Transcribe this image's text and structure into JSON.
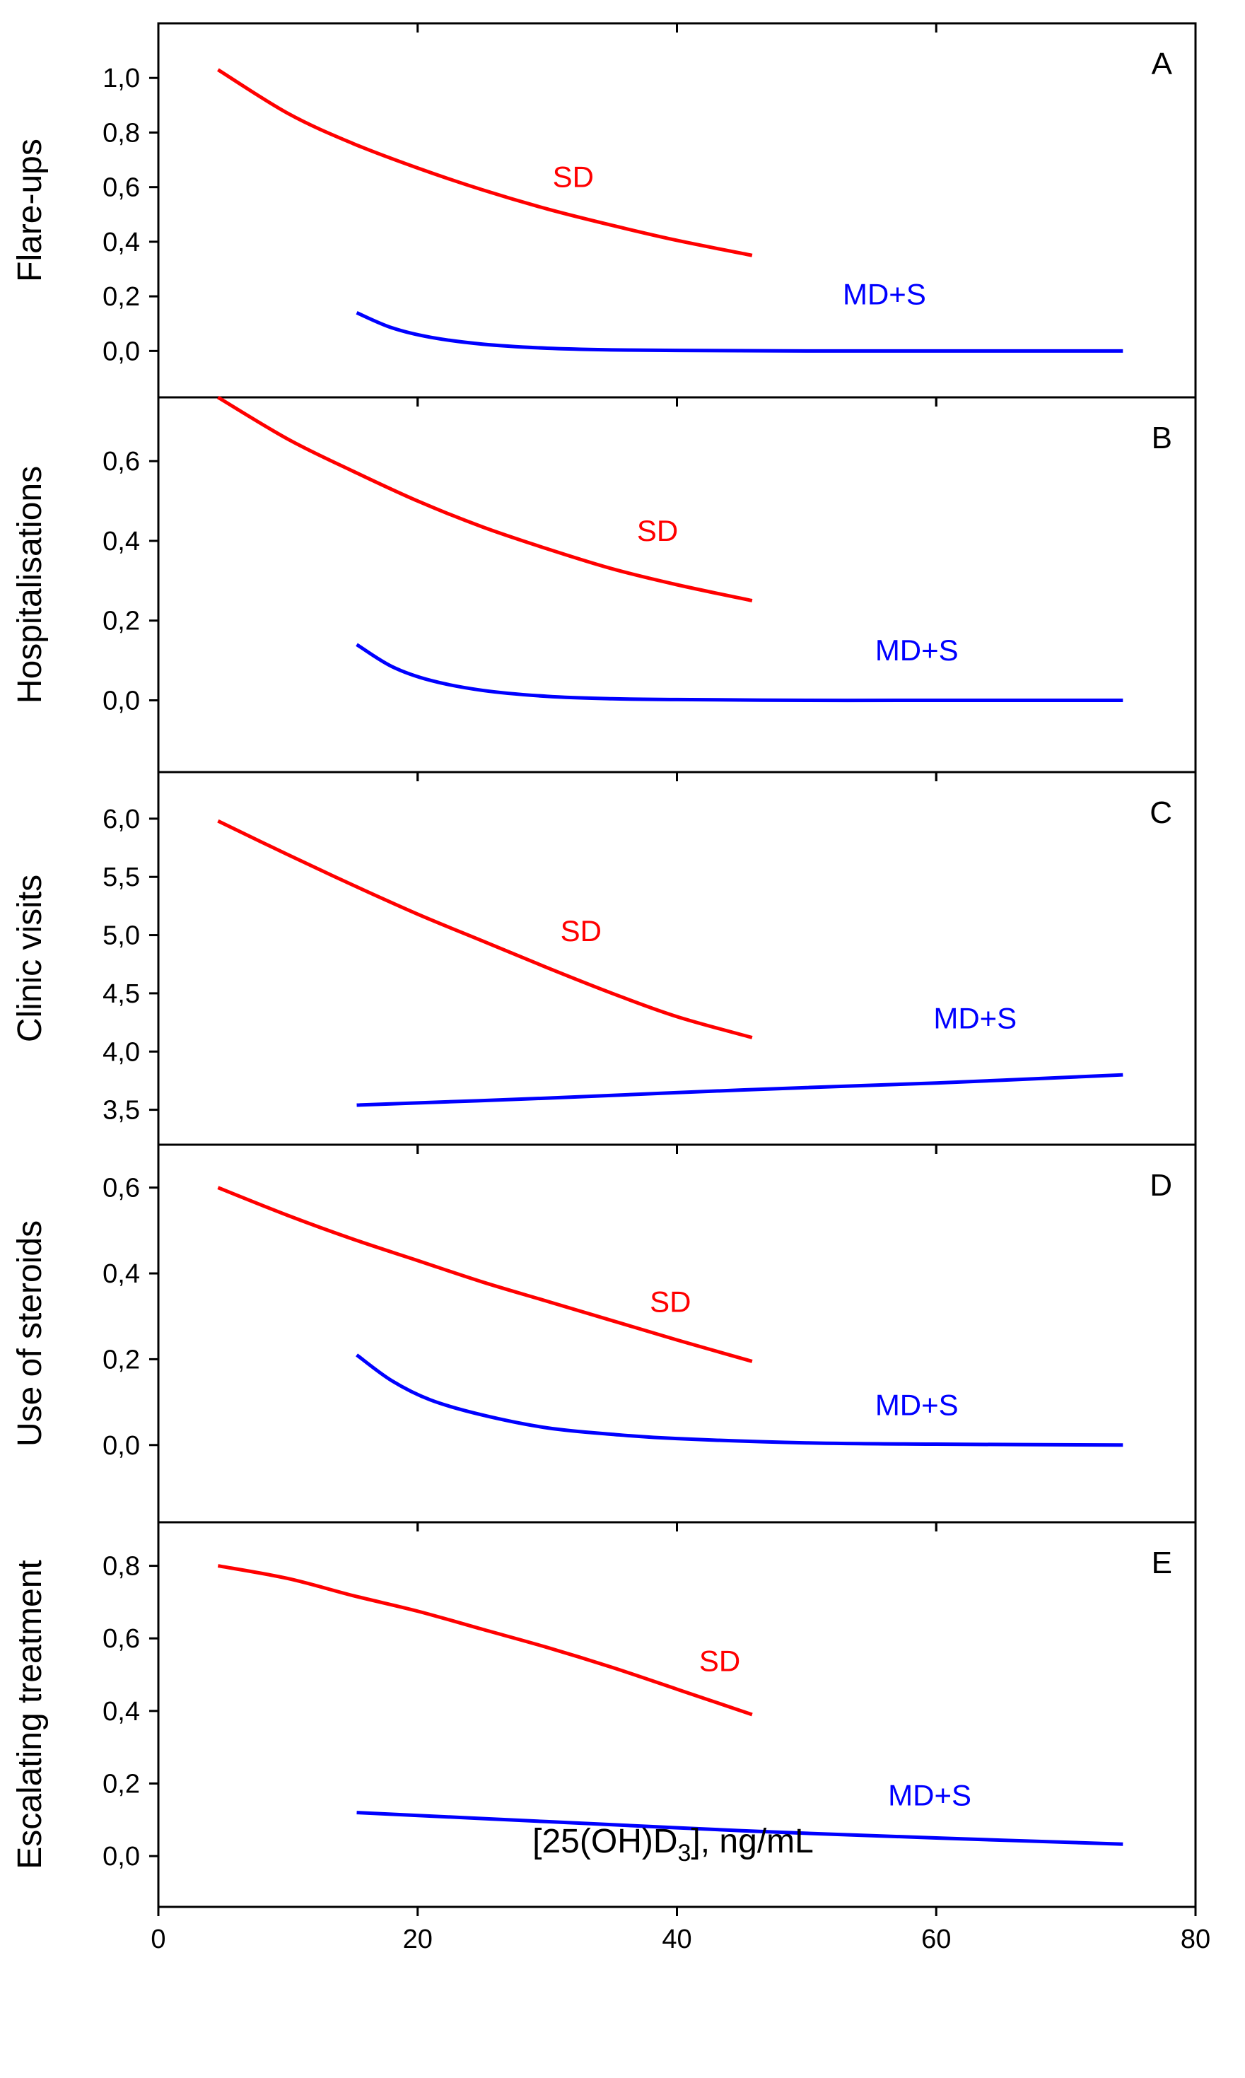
{
  "chart_data": {
    "type": "line",
    "xlabel_parts": {
      "prefix": "[25(OH)D",
      "subscript": "3",
      "suffix": "], ng/mL"
    },
    "xlim": [
      0,
      80
    ],
    "xticks": [
      0,
      20,
      40,
      60,
      80
    ],
    "xtick_labels": [
      "0",
      "20",
      "40",
      "60",
      "80"
    ],
    "colors": {
      "SD": "#ff0000",
      "MD+S": "#0000ff",
      "frame": "#000000"
    },
    "panels": [
      {
        "letter": "A",
        "ylabel": "Flare-ups",
        "ylim": [
          -0.17,
          1.2
        ],
        "yticks": [
          0.0,
          0.2,
          0.4,
          0.6,
          0.8,
          1.0
        ],
        "ytick_labels": [
          "0,0",
          "0,2",
          "0,4",
          "0,6",
          "0,8",
          "1,0"
        ],
        "series": [
          {
            "name": "SD",
            "label": "SD",
            "label_at": [
              32,
              0.6
            ],
            "x": [
              4.6,
              10,
              15,
              20,
              25,
              30,
              35,
              40,
              45.8
            ],
            "y": [
              1.03,
              0.87,
              0.76,
              0.67,
              0.59,
              0.52,
              0.46,
              0.405,
              0.35
            ]
          },
          {
            "name": "MD+S",
            "label": "MD+S",
            "label_at": [
              56,
              0.17
            ],
            "x": [
              15.3,
              18,
              21,
              25,
              30,
              35,
              40,
              50,
              60,
              74.4
            ],
            "y": [
              0.14,
              0.085,
              0.05,
              0.025,
              0.01,
              0.004,
              0.002,
              0.0,
              0.0,
              0.0
            ]
          }
        ]
      },
      {
        "letter": "B",
        "ylabel": "Hospitalisations",
        "ylim": [
          -0.18,
          0.76
        ],
        "yticks": [
          0.0,
          0.2,
          0.4,
          0.6
        ],
        "ytick_labels": [
          "0,0",
          "0,2",
          "0,4",
          "0,6"
        ],
        "series": [
          {
            "name": "SD",
            "label": "SD",
            "label_at": [
              38.5,
              0.4
            ],
            "x": [
              4.6,
              10,
              15,
              20,
              25,
              30,
              35,
              40,
              45.8
            ],
            "y": [
              0.76,
              0.655,
              0.575,
              0.5,
              0.435,
              0.38,
              0.33,
              0.29,
              0.25
            ]
          },
          {
            "name": "MD+S",
            "label": "MD+S",
            "label_at": [
              58.5,
              0.1
            ],
            "x": [
              15.3,
              18,
              21,
              25,
              30,
              35,
              40,
              50,
              60,
              74.4
            ],
            "y": [
              0.14,
              0.085,
              0.05,
              0.025,
              0.01,
              0.004,
              0.002,
              0.0,
              0.0,
              0.0
            ]
          }
        ]
      },
      {
        "letter": "C",
        "ylabel": "Clinic visits",
        "ylim": [
          3.2,
          6.4
        ],
        "yticks": [
          3.5,
          4.0,
          4.5,
          5.0,
          5.5,
          6.0
        ],
        "ytick_labels": [
          "3,5",
          "4,0",
          "4,5",
          "5,0",
          "5,5",
          "6,0"
        ],
        "series": [
          {
            "name": "SD",
            "label": "SD",
            "label_at": [
              32.6,
              4.95
            ],
            "x": [
              4.6,
              10,
              15,
              20,
              25,
              30,
              35,
              40,
              45.8
            ],
            "y": [
              5.98,
              5.69,
              5.43,
              5.18,
              4.95,
              4.72,
              4.5,
              4.3,
              4.12
            ]
          },
          {
            "name": "MD+S",
            "label": "MD+S",
            "label_at": [
              63,
              4.2
            ],
            "x": [
              15.3,
              30,
              45,
              60,
              74.4
            ],
            "y": [
              3.54,
              3.6,
              3.67,
              3.73,
              3.8
            ]
          }
        ]
      },
      {
        "letter": "D",
        "ylabel": "Use of steroids",
        "ylim": [
          -0.18,
          0.7
        ],
        "yticks": [
          0.0,
          0.2,
          0.4,
          0.6
        ],
        "ytick_labels": [
          "0,0",
          "0,2",
          "0,4",
          "0,6"
        ],
        "series": [
          {
            "name": "SD",
            "label": "SD",
            "label_at": [
              39.5,
              0.31
            ],
            "x": [
              4.6,
              10,
              15,
              20,
              25,
              30,
              35,
              40,
              45.8
            ],
            "y": [
              0.6,
              0.535,
              0.48,
              0.43,
              0.38,
              0.335,
              0.29,
              0.245,
              0.195
            ]
          },
          {
            "name": "MD+S",
            "label": "MD+S",
            "label_at": [
              58.5,
              0.07
            ],
            "x": [
              15.3,
              18,
              21,
              25,
              30,
              35,
              40,
              50,
              60,
              74.4
            ],
            "y": [
              0.21,
              0.15,
              0.105,
              0.07,
              0.04,
              0.025,
              0.015,
              0.005,
              0.002,
              0.0
            ]
          }
        ]
      },
      {
        "letter": "E",
        "ylabel": "Escalating treatment",
        "ylim": [
          -0.14,
          0.92
        ],
        "yticks": [
          0.0,
          0.2,
          0.4,
          0.6,
          0.8
        ],
        "ytick_labels": [
          "0,0",
          "0,2",
          "0,4",
          "0,6",
          "0,8"
        ],
        "series": [
          {
            "name": "SD",
            "label": "SD",
            "label_at": [
              43.3,
              0.51
            ],
            "x": [
              4.6,
              10,
              15,
              20,
              25,
              30,
              35,
              40,
              45.8
            ],
            "y": [
              0.8,
              0.765,
              0.718,
              0.675,
              0.625,
              0.575,
              0.52,
              0.46,
              0.39
            ]
          },
          {
            "name": "MD+S",
            "label": "MD+S",
            "label_at": [
              59.5,
              0.14
            ],
            "x": [
              15.3,
              30,
              45,
              60,
              74.4
            ],
            "y": [
              0.12,
              0.095,
              0.07,
              0.05,
              0.033
            ]
          }
        ]
      }
    ]
  }
}
